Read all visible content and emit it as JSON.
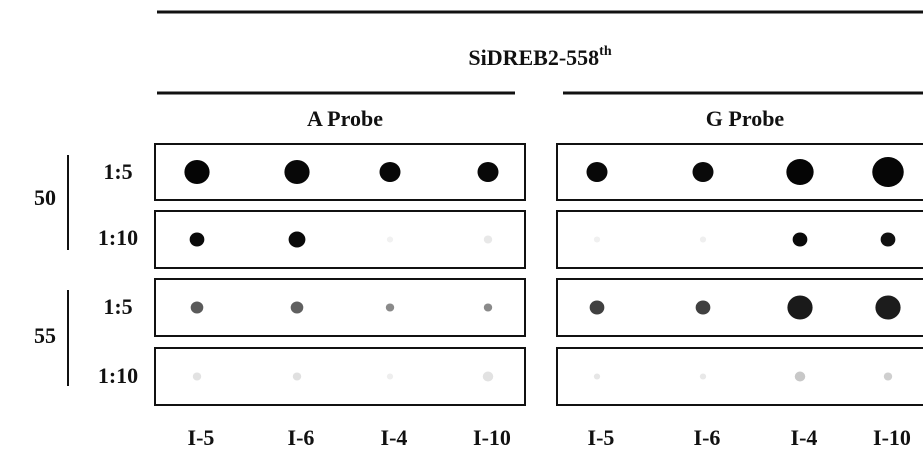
{
  "title": {
    "text": "SiDREB2-558",
    "superscript": "th"
  },
  "panels": [
    {
      "probe": "A Probe",
      "lanes": [
        "I-5",
        "I-6",
        "I-4",
        "I-10"
      ]
    },
    {
      "probe": "G Probe",
      "lanes": [
        "I-5",
        "I-6",
        "I-4",
        "I-10"
      ]
    }
  ],
  "groups": [
    {
      "label": "50",
      "ratios": [
        "1:5",
        "1:10"
      ]
    },
    {
      "label": "55",
      "ratios": [
        "1:5",
        "1:10"
      ]
    }
  ]
}
